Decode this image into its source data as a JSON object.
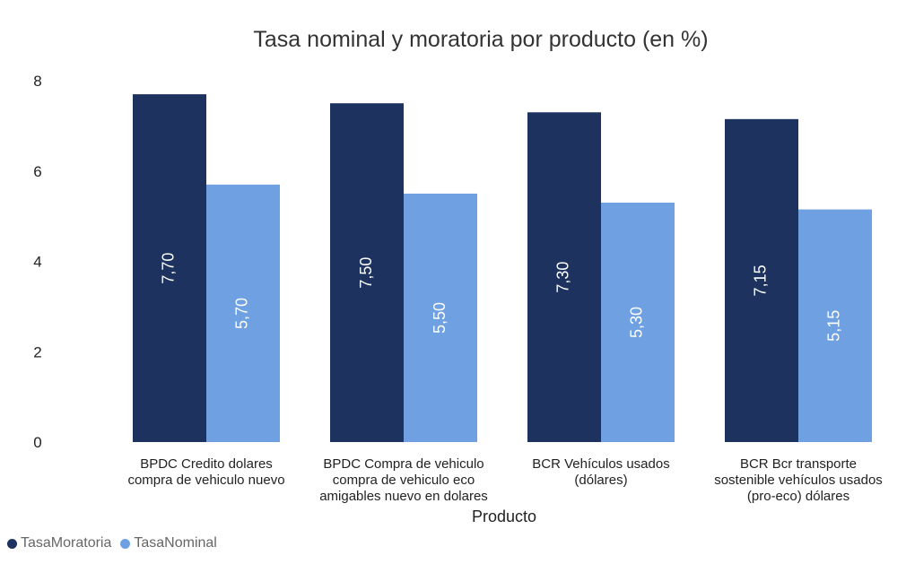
{
  "chart_data": {
    "type": "bar",
    "title": "Tasa nominal y moratoria por producto (en %)",
    "xlabel": "Producto",
    "ylabel": "",
    "ylim": [
      0,
      8
    ],
    "yticks": [
      0,
      2,
      4,
      6,
      8
    ],
    "categories": [
      [
        "BPDC Credito dolares",
        "compra de vehiculo nuevo"
      ],
      [
        "BPDC Compra de vehiculo",
        "compra de vehiculo eco",
        "amigables nuevo en dolares"
      ],
      [
        "BCR Vehículos usados",
        "(dólares)"
      ],
      [
        "BCR Bcr transporte",
        "sostenible vehículos usados",
        "(pro-eco) dólares"
      ]
    ],
    "series": [
      {
        "name": "TasaMoratoria",
        "color": "#1d325e",
        "values": [
          7.7,
          7.5,
          7.3,
          7.15
        ],
        "labels": [
          "7,70",
          "7,50",
          "7,30",
          "7,15"
        ]
      },
      {
        "name": "TasaNominal",
        "color": "#6fa1e2",
        "values": [
          5.7,
          5.5,
          5.3,
          5.15
        ],
        "labels": [
          "5,70",
          "5,50",
          "5,30",
          "5,15"
        ]
      }
    ],
    "legend_position": "bottom-left"
  }
}
